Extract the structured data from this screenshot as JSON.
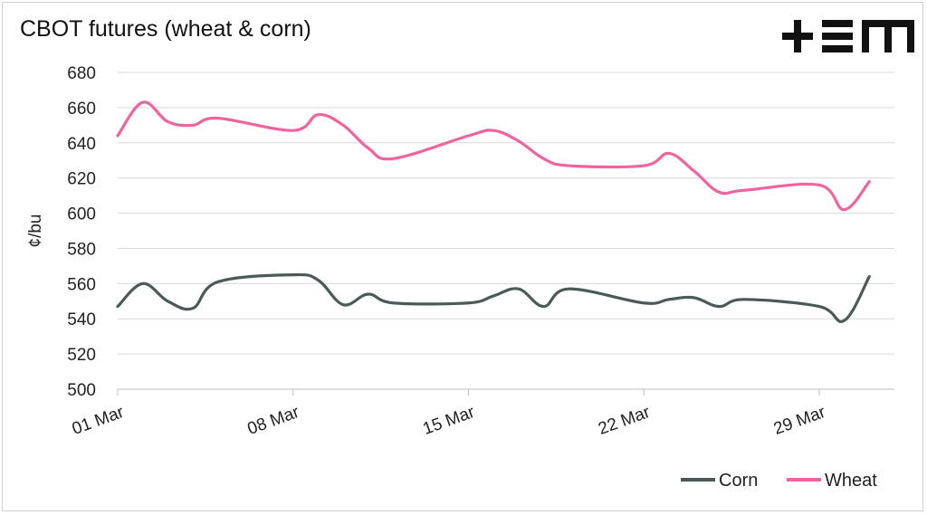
{
  "chart_data": {
    "type": "line",
    "title": "CBOT futures (wheat & corn)",
    "ylabel": "¢/bu",
    "xlabel": "",
    "ylim": [
      500,
      680
    ],
    "yticks": [
      500,
      520,
      540,
      560,
      580,
      600,
      620,
      640,
      660,
      680
    ],
    "x_start": "01 Mar",
    "x_end": "31 Mar",
    "xticks": [
      {
        "day": 1,
        "label": "01 Mar"
      },
      {
        "day": 8,
        "label": "08 Mar"
      },
      {
        "day": 15,
        "label": "15 Mar"
      },
      {
        "day": 22,
        "label": "22 Mar"
      },
      {
        "day": 29,
        "label": "29 Mar"
      }
    ],
    "grid": "horizontal",
    "legend": "bottom-right",
    "series": [
      {
        "name": "Corn",
        "color": "#4a5a58",
        "days": [
          1,
          2,
          3,
          4,
          5,
          8,
          9,
          10,
          11,
          12,
          15,
          16,
          17,
          18,
          19,
          22,
          23,
          24,
          25,
          26,
          29,
          30,
          31
        ],
        "values": [
          547,
          560,
          550,
          546,
          561,
          565,
          562,
          548,
          554,
          549,
          549,
          553,
          557,
          547,
          557,
          549,
          551,
          552,
          547,
          551,
          547,
          539,
          564
        ]
      },
      {
        "name": "Wheat",
        "color": "#f0639e",
        "days": [
          1,
          2,
          3,
          4,
          5,
          8,
          9,
          10,
          11,
          12,
          15,
          16,
          17,
          18,
          19,
          22,
          23,
          24,
          25,
          26,
          29,
          30,
          31
        ],
        "values": [
          644,
          663,
          652,
          650,
          654,
          647,
          656,
          650,
          637,
          631,
          644,
          647,
          641,
          631,
          627,
          627,
          634,
          624,
          612,
          613,
          616,
          602,
          618
        ]
      }
    ]
  },
  "brand": {
    "logo": "+EM-logo",
    "color": "#111111"
  }
}
